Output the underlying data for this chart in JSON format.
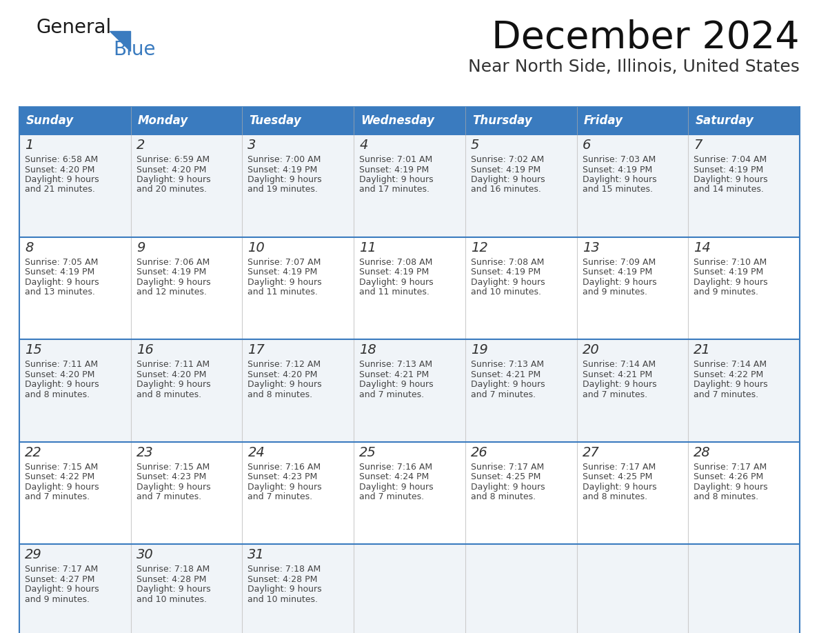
{
  "title": "December 2024",
  "subtitle": "Near North Side, Illinois, United States",
  "header_bg_color": "#3a7bbf",
  "header_text_color": "#ffffff",
  "cell_bg_row0": "#f0f4f8",
  "cell_bg_row1": "#ffffff",
  "cell_bg_row2": "#f0f4f8",
  "cell_bg_row3": "#ffffff",
  "cell_bg_row4": "#f0f4f8",
  "cell_text_color": "#444444",
  "day_number_color": "#333333",
  "border_color": "#3a7bbf",
  "days_of_week": [
    "Sunday",
    "Monday",
    "Tuesday",
    "Wednesday",
    "Thursday",
    "Friday",
    "Saturday"
  ],
  "weeks": [
    [
      {
        "day": 1,
        "sunrise": "6:58 AM",
        "sunset": "4:20 PM",
        "daylight": "9 hours and 21 minutes."
      },
      {
        "day": 2,
        "sunrise": "6:59 AM",
        "sunset": "4:20 PM",
        "daylight": "9 hours and 20 minutes."
      },
      {
        "day": 3,
        "sunrise": "7:00 AM",
        "sunset": "4:19 PM",
        "daylight": "9 hours and 19 minutes."
      },
      {
        "day": 4,
        "sunrise": "7:01 AM",
        "sunset": "4:19 PM",
        "daylight": "9 hours and 17 minutes."
      },
      {
        "day": 5,
        "sunrise": "7:02 AM",
        "sunset": "4:19 PM",
        "daylight": "9 hours and 16 minutes."
      },
      {
        "day": 6,
        "sunrise": "7:03 AM",
        "sunset": "4:19 PM",
        "daylight": "9 hours and 15 minutes."
      },
      {
        "day": 7,
        "sunrise": "7:04 AM",
        "sunset": "4:19 PM",
        "daylight": "9 hours and 14 minutes."
      }
    ],
    [
      {
        "day": 8,
        "sunrise": "7:05 AM",
        "sunset": "4:19 PM",
        "daylight": "9 hours and 13 minutes."
      },
      {
        "day": 9,
        "sunrise": "7:06 AM",
        "sunset": "4:19 PM",
        "daylight": "9 hours and 12 minutes."
      },
      {
        "day": 10,
        "sunrise": "7:07 AM",
        "sunset": "4:19 PM",
        "daylight": "9 hours and 11 minutes."
      },
      {
        "day": 11,
        "sunrise": "7:08 AM",
        "sunset": "4:19 PM",
        "daylight": "9 hours and 11 minutes."
      },
      {
        "day": 12,
        "sunrise": "7:08 AM",
        "sunset": "4:19 PM",
        "daylight": "9 hours and 10 minutes."
      },
      {
        "day": 13,
        "sunrise": "7:09 AM",
        "sunset": "4:19 PM",
        "daylight": "9 hours and 9 minutes."
      },
      {
        "day": 14,
        "sunrise": "7:10 AM",
        "sunset": "4:19 PM",
        "daylight": "9 hours and 9 minutes."
      }
    ],
    [
      {
        "day": 15,
        "sunrise": "7:11 AM",
        "sunset": "4:20 PM",
        "daylight": "9 hours and 8 minutes."
      },
      {
        "day": 16,
        "sunrise": "7:11 AM",
        "sunset": "4:20 PM",
        "daylight": "9 hours and 8 minutes."
      },
      {
        "day": 17,
        "sunrise": "7:12 AM",
        "sunset": "4:20 PM",
        "daylight": "9 hours and 8 minutes."
      },
      {
        "day": 18,
        "sunrise": "7:13 AM",
        "sunset": "4:21 PM",
        "daylight": "9 hours and 7 minutes."
      },
      {
        "day": 19,
        "sunrise": "7:13 AM",
        "sunset": "4:21 PM",
        "daylight": "9 hours and 7 minutes."
      },
      {
        "day": 20,
        "sunrise": "7:14 AM",
        "sunset": "4:21 PM",
        "daylight": "9 hours and 7 minutes."
      },
      {
        "day": 21,
        "sunrise": "7:14 AM",
        "sunset": "4:22 PM",
        "daylight": "9 hours and 7 minutes."
      }
    ],
    [
      {
        "day": 22,
        "sunrise": "7:15 AM",
        "sunset": "4:22 PM",
        "daylight": "9 hours and 7 minutes."
      },
      {
        "day": 23,
        "sunrise": "7:15 AM",
        "sunset": "4:23 PM",
        "daylight": "9 hours and 7 minutes."
      },
      {
        "day": 24,
        "sunrise": "7:16 AM",
        "sunset": "4:23 PM",
        "daylight": "9 hours and 7 minutes."
      },
      {
        "day": 25,
        "sunrise": "7:16 AM",
        "sunset": "4:24 PM",
        "daylight": "9 hours and 7 minutes."
      },
      {
        "day": 26,
        "sunrise": "7:17 AM",
        "sunset": "4:25 PM",
        "daylight": "9 hours and 8 minutes."
      },
      {
        "day": 27,
        "sunrise": "7:17 AM",
        "sunset": "4:25 PM",
        "daylight": "9 hours and 8 minutes."
      },
      {
        "day": 28,
        "sunrise": "7:17 AM",
        "sunset": "4:26 PM",
        "daylight": "9 hours and 8 minutes."
      }
    ],
    [
      {
        "day": 29,
        "sunrise": "7:17 AM",
        "sunset": "4:27 PM",
        "daylight": "9 hours and 9 minutes."
      },
      {
        "day": 30,
        "sunrise": "7:18 AM",
        "sunset": "4:28 PM",
        "daylight": "9 hours and 10 minutes."
      },
      {
        "day": 31,
        "sunrise": "7:18 AM",
        "sunset": "4:28 PM",
        "daylight": "9 hours and 10 minutes."
      },
      null,
      null,
      null,
      null
    ]
  ],
  "logo_text_general": "General",
  "logo_text_blue": "Blue",
  "logo_color_general": "#1a1a1a",
  "logo_color_blue": "#3a7bbf",
  "title_fontsize": 40,
  "subtitle_fontsize": 18,
  "header_fontsize": 12,
  "day_num_fontsize": 14,
  "cell_fontsize": 9
}
